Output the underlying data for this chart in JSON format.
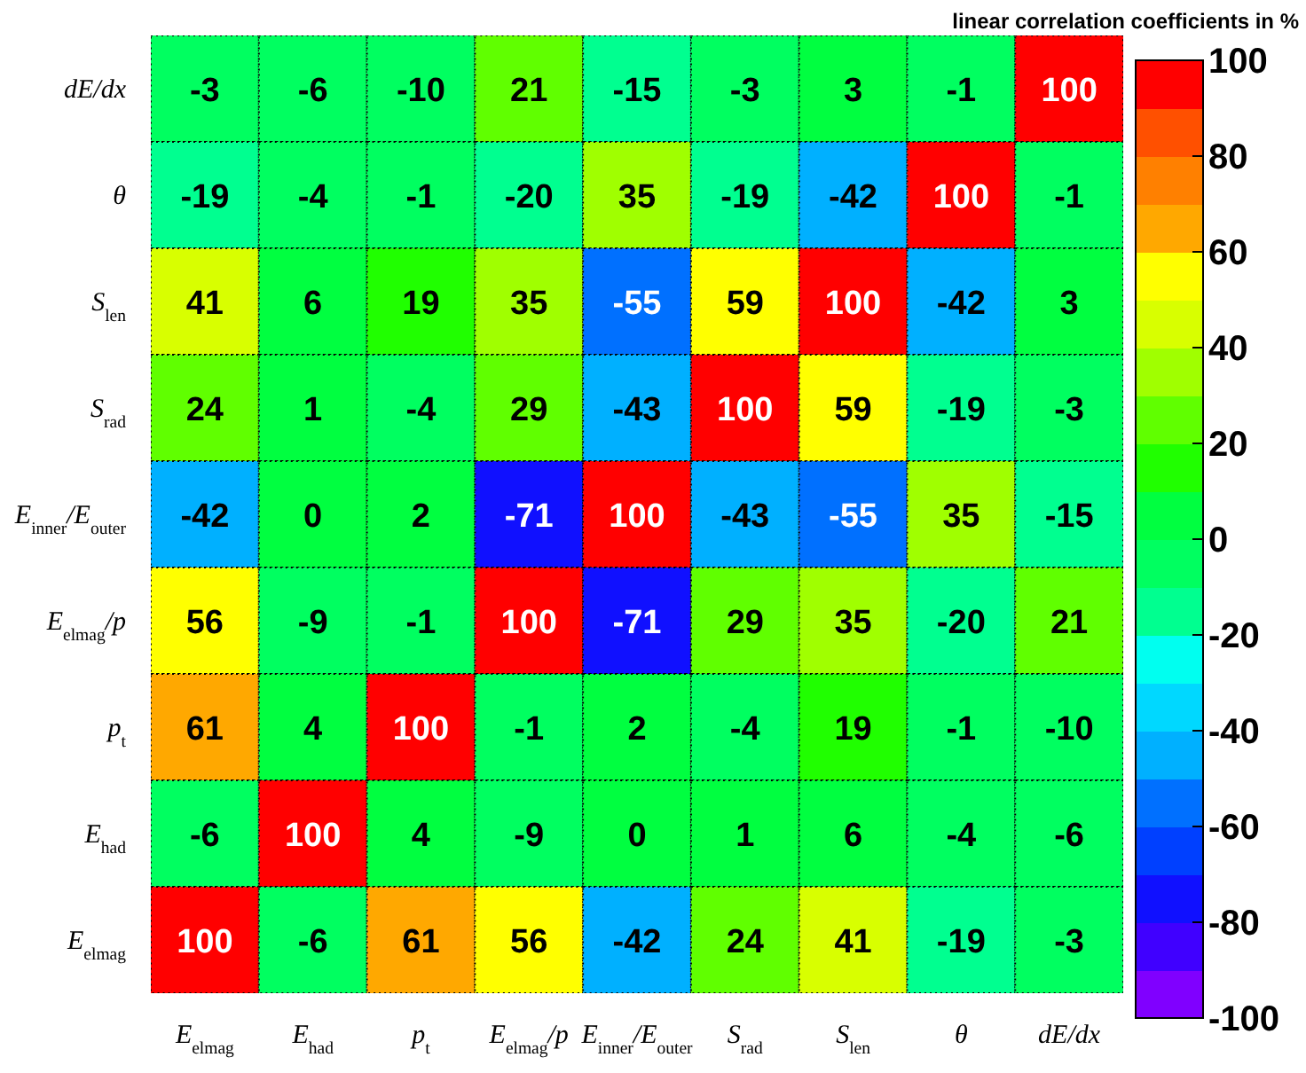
{
  "chart_data": {
    "type": "heatmap",
    "title": "linear correlation coefficients in %",
    "categories": [
      "E$_{elmag}$",
      "E$_{had}$",
      "p$_{t}$",
      "E$_{elmag}$/p",
      "E$_{inner}$/E$_{outer}$",
      "S$_{rad}$",
      "S$_{len}$",
      "θ",
      "dE/dx"
    ],
    "y_categories": [
      "dE/dx",
      "θ",
      "S$_{len}$",
      "S$_{rad}$",
      "E$_{inner}$/E$_{outer}$",
      "E$_{elmag}$/p",
      "p$_{t}$",
      "E$_{had}$",
      "E$_{elmag}$"
    ],
    "cells": [
      [
        -3,
        -6,
        -10,
        21,
        -15,
        -3,
        3,
        -1,
        100
      ],
      [
        -19,
        -4,
        -1,
        -20,
        35,
        -19,
        -42,
        100,
        -1
      ],
      [
        41,
        6,
        19,
        35,
        -55,
        59,
        100,
        -42,
        3
      ],
      [
        24,
        1,
        -4,
        29,
        -43,
        100,
        59,
        -19,
        -3
      ],
      [
        -42,
        0,
        2,
        -71,
        100,
        -43,
        -55,
        35,
        -15
      ],
      [
        56,
        -9,
        -1,
        100,
        -71,
        29,
        35,
        -20,
        21
      ],
      [
        61,
        4,
        100,
        -1,
        2,
        -4,
        19,
        -1,
        -10
      ],
      [
        -6,
        100,
        4,
        -9,
        0,
        1,
        6,
        -4,
        -6
      ],
      [
        100,
        -6,
        61,
        56,
        -42,
        24,
        41,
        -19,
        -3
      ]
    ],
    "clim": [
      -100,
      100
    ],
    "cticks": [
      -100,
      -80,
      -60,
      -40,
      -20,
      0,
      20,
      40,
      60,
      80,
      100
    ],
    "data_labels": true
  }
}
